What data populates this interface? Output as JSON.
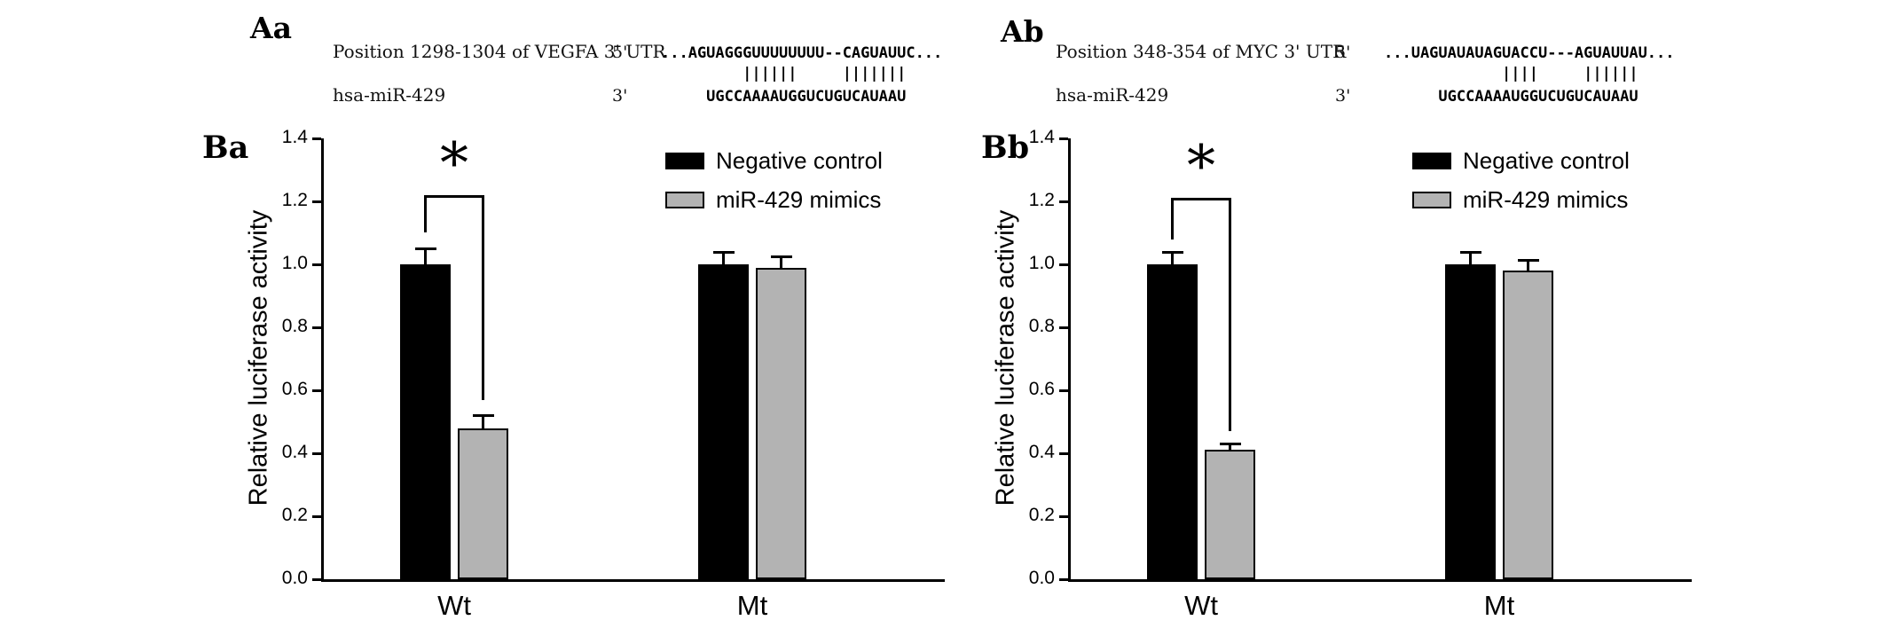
{
  "panels": {
    "Aa": {
      "label": "Aa",
      "position_line": "Position 1298-1304 of VEGFA 3' UTR",
      "five_prime": "5'",
      "target_seq": "...AGUAGGGUUUUUUUU--CAGUAUUC...",
      "pairing": "         ||||||     |||||||",
      "mirna_name": "hsa-miR-429",
      "three_prime": "3'",
      "mirna_seq": "     UGCCAAAAUGGUCUGUCAUAAU"
    },
    "Ab": {
      "label": "Ab",
      "position_line": "Position 348-354 of MYC 3' UTR",
      "five_prime": "5'",
      "target_seq": "...UAGUAUAUAGUACCU---AGUAUUAU...",
      "pairing": "             ||||     ||||||",
      "mirna_name": "hsa-miR-429",
      "three_prime": "3'",
      "mirna_seq": "      UGCCAAAAUGGUCUGUCAUAAU"
    },
    "Ba": {
      "label": "Ba"
    },
    "Bb": {
      "label": "Bb"
    }
  },
  "chart_data": [
    {
      "id": "Ba",
      "type": "bar",
      "categories": [
        "Wt",
        "Mt"
      ],
      "series": [
        {
          "name": "Negative control",
          "color": "#000000",
          "values": [
            1.0,
            1.0
          ],
          "errors": [
            0.05,
            0.04
          ]
        },
        {
          "name": "miR-429 mimics",
          "color": "#b3b3b3",
          "values": [
            0.48,
            0.99
          ],
          "errors": [
            0.04,
            0.035
          ]
        }
      ],
      "title": "",
      "xlabel": "",
      "ylabel": "Relative luciferase activity",
      "ylim": [
        0,
        1.4
      ],
      "yticks": [
        "0.0",
        "0.2",
        "0.4",
        "0.6",
        "0.8",
        "1.0",
        "1.2",
        "1.4"
      ],
      "grid": false,
      "legend_position": "top-right",
      "significance": {
        "symbol": "*",
        "category": 0,
        "bracket_top": 1.22,
        "left_y": 1.1,
        "right_y": 0.57
      }
    },
    {
      "id": "Bb",
      "type": "bar",
      "categories": [
        "Wt",
        "Mt"
      ],
      "series": [
        {
          "name": "Negative control",
          "color": "#000000",
          "values": [
            1.0,
            1.0
          ],
          "errors": [
            0.04,
            0.04
          ]
        },
        {
          "name": "miR-429 mimics",
          "color": "#b3b3b3",
          "values": [
            0.41,
            0.98
          ],
          "errors": [
            0.02,
            0.035
          ]
        }
      ],
      "title": "",
      "xlabel": "",
      "ylabel": "Relative luciferase activity",
      "ylim": [
        0,
        1.4
      ],
      "yticks": [
        "0.0",
        "0.2",
        "0.4",
        "0.6",
        "0.8",
        "1.0",
        "1.2",
        "1.4"
      ],
      "grid": false,
      "legend_position": "top-right",
      "significance": {
        "symbol": "*",
        "category": 0,
        "bracket_top": 1.21,
        "left_y": 1.08,
        "right_y": 0.47
      }
    }
  ]
}
